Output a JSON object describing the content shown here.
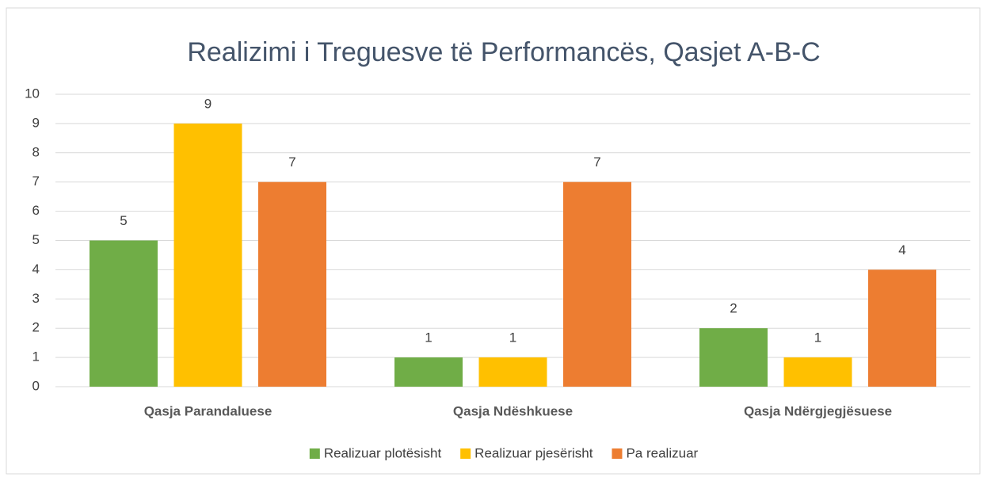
{
  "chart_data": {
    "type": "bar",
    "title": "Realizimi i Treguesve të Performancës, Qasjet A-B-C",
    "categories": [
      "Qasja Parandaluese",
      "Qasja Ndëshkuese",
      "Qasja Ndërgjegjësuese"
    ],
    "series": [
      {
        "name": "Realizuar plotësisht",
        "color": "#70ad47",
        "values": [
          5,
          1,
          2
        ]
      },
      {
        "name": "Realizuar pjesërisht",
        "color": "#ffc000",
        "values": [
          9,
          1,
          1
        ]
      },
      {
        "name": "Pa realizuar",
        "color": "#ed7d31",
        "values": [
          7,
          7,
          4
        ]
      }
    ],
    "ylim": [
      0,
      10
    ],
    "yticks": [
      0,
      1,
      2,
      3,
      4,
      5,
      6,
      7,
      8,
      9,
      10
    ],
    "grid": true,
    "legend": "bottom"
  }
}
